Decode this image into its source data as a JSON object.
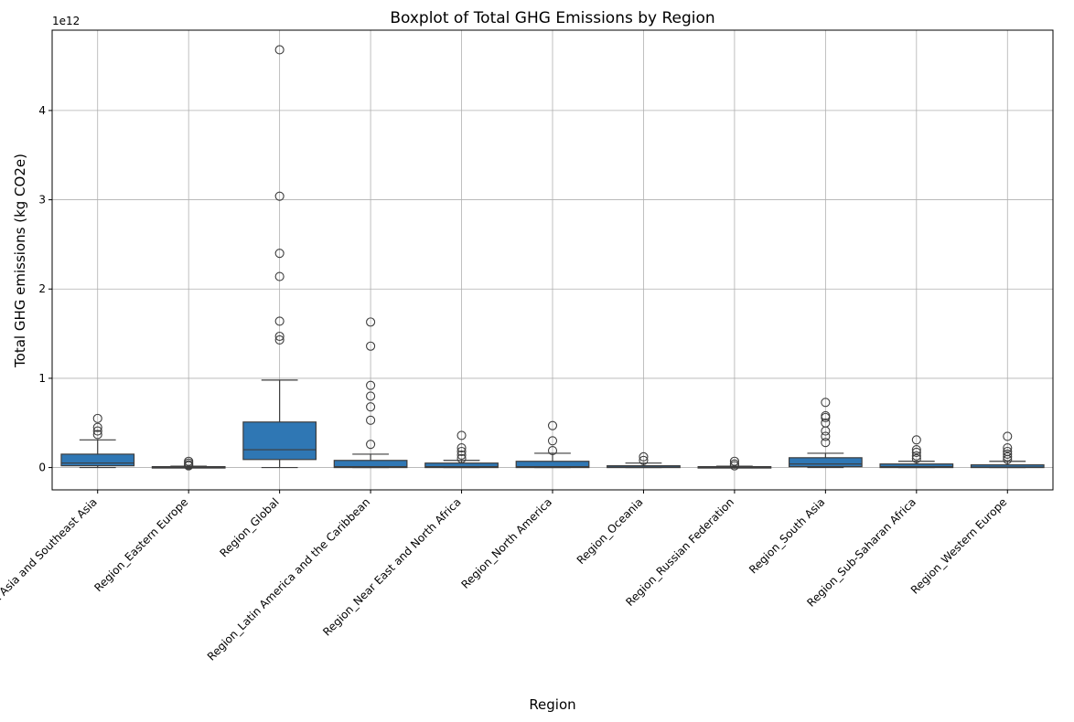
{
  "chart_data": {
    "type": "box",
    "title": "Boxplot of Total GHG Emissions by Region",
    "xlabel": "Region",
    "ylabel": "Total GHG emissions (kg CO2e)",
    "y_exponent_label": "1e12",
    "y_scale_factor": 1000000000000.0,
    "ylim": [
      -0.25,
      4.9
    ],
    "yticks": [
      0,
      1,
      2,
      3,
      4
    ],
    "grid": true,
    "box_color": "#2f77b4",
    "line_color": "#3d3d3d",
    "categories": [
      "Region_East Asia and Southeast Asia",
      "Region_Eastern Europe",
      "Region_Global",
      "Region_Latin America and the Caribbean",
      "Region_Near East and North Africa",
      "Region_North America",
      "Region_Oceania",
      "Region_Russian Federation",
      "Region_South Asia",
      "Region_Sub-Saharan Africa",
      "Region_Western Europe"
    ],
    "boxes": [
      {
        "whisker_low": 0.0,
        "q1": 0.02,
        "median": 0.05,
        "q3": 0.15,
        "whisker_high": 0.31,
        "outliers": [
          0.37,
          0.41,
          0.45,
          0.55
        ]
      },
      {
        "whisker_low": 0.0,
        "q1": 0.0,
        "median": 0.005,
        "q3": 0.01,
        "whisker_high": 0.015,
        "outliers": [
          0.02,
          0.03,
          0.05,
          0.07
        ]
      },
      {
        "whisker_low": 0.0,
        "q1": 0.09,
        "median": 0.2,
        "q3": 0.51,
        "whisker_high": 0.98,
        "outliers": [
          1.43,
          1.47,
          1.64,
          2.14,
          2.4,
          3.04,
          4.68
        ]
      },
      {
        "whisker_low": 0.0,
        "q1": 0.0,
        "median": 0.01,
        "q3": 0.08,
        "whisker_high": 0.15,
        "outliers": [
          0.26,
          0.53,
          0.68,
          0.8,
          0.92,
          1.36,
          1.63
        ]
      },
      {
        "whisker_low": 0.0,
        "q1": 0.0,
        "median": 0.01,
        "q3": 0.05,
        "whisker_high": 0.08,
        "outliers": [
          0.1,
          0.14,
          0.18,
          0.22,
          0.36
        ]
      },
      {
        "whisker_low": 0.0,
        "q1": 0.0,
        "median": 0.01,
        "q3": 0.07,
        "whisker_high": 0.16,
        "outliers": [
          0.19,
          0.3,
          0.47
        ]
      },
      {
        "whisker_low": 0.0,
        "q1": 0.0,
        "median": 0.005,
        "q3": 0.02,
        "whisker_high": 0.05,
        "outliers": [
          0.08,
          0.12
        ]
      },
      {
        "whisker_low": 0.0,
        "q1": 0.0,
        "median": 0.005,
        "q3": 0.01,
        "whisker_high": 0.015,
        "outliers": [
          0.02,
          0.04,
          0.07
        ]
      },
      {
        "whisker_low": 0.0,
        "q1": 0.01,
        "median": 0.04,
        "q3": 0.11,
        "whisker_high": 0.16,
        "outliers": [
          0.28,
          0.35,
          0.41,
          0.5,
          0.56,
          0.58,
          0.73
        ]
      },
      {
        "whisker_low": 0.0,
        "q1": 0.0,
        "median": 0.01,
        "q3": 0.04,
        "whisker_high": 0.07,
        "outliers": [
          0.1,
          0.13,
          0.17,
          0.2,
          0.31
        ]
      },
      {
        "whisker_low": 0.0,
        "q1": 0.0,
        "median": 0.005,
        "q3": 0.03,
        "whisker_high": 0.07,
        "outliers": [
          0.09,
          0.12,
          0.15,
          0.18,
          0.22,
          0.35
        ]
      }
    ]
  }
}
